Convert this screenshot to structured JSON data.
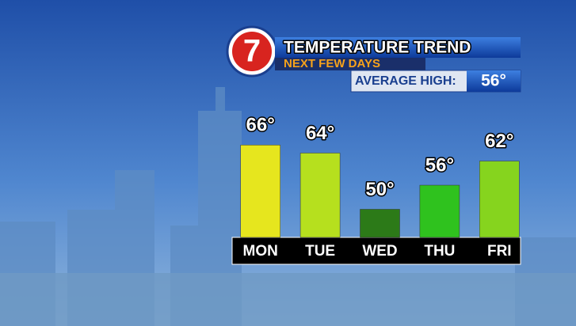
{
  "chart_data": {
    "type": "bar",
    "logo": "7",
    "title": "TEMPERATURE TREND",
    "subtitle": "NEXT FEW DAYS",
    "average_label": "AVERAGE HIGH:",
    "average_value_label": "56°",
    "categories": [
      "MON",
      "TUE",
      "WED",
      "THU",
      "FRI"
    ],
    "values": [
      66,
      64,
      50,
      56,
      62
    ],
    "value_labels": [
      "66°",
      "64°",
      "50°",
      "56°",
      "62°"
    ],
    "colors": [
      "#e6e61e",
      "#b6e01e",
      "#2c7a18",
      "#2fc21e",
      "#86d41e"
    ],
    "ylim": [
      43,
      70
    ]
  }
}
